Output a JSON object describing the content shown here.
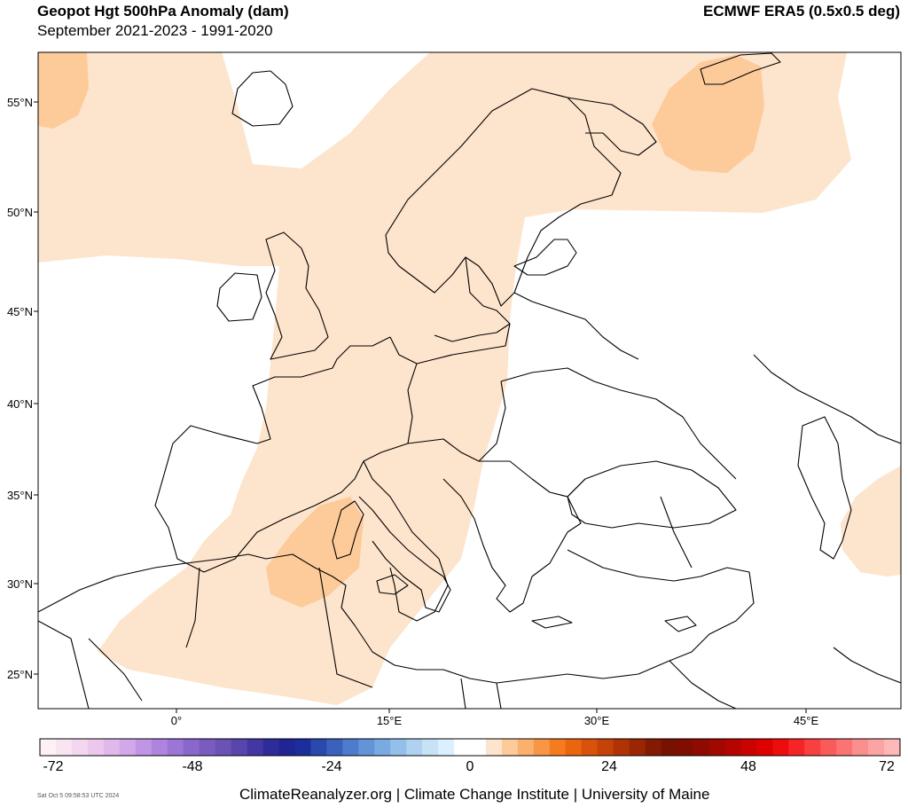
{
  "header": {
    "title": "Geopot Hgt 500hPa Anomaly (dam)",
    "subtitle": "September 2021-2023 - 1991-2020",
    "source": "ECMWF ERA5 (0.5x0.5 deg)"
  },
  "map": {
    "lat_labels": [
      "55°N",
      "50°N",
      "45°N",
      "40°N",
      "35°N",
      "30°N",
      "25°N"
    ],
    "lon_labels": [
      "0°",
      "15°E",
      "30°E",
      "45°E"
    ],
    "anomaly_colors": {
      "light_positive": "#fde4cc",
      "moderate_positive": "#fdca9a"
    }
  },
  "legend": {
    "labels": [
      "-72",
      "-48",
      "-24",
      "0",
      "24",
      "48",
      "72"
    ],
    "colors": [
      "#fdf0f7",
      "#f9e4f2",
      "#f3d6ef",
      "#ecc8ee",
      "#e0b8ec",
      "#d2a8ea",
      "#c195e6",
      "#ae84df",
      "#9c75d6",
      "#8a67cb",
      "#7a5cc0",
      "#6a52b6",
      "#5946ad",
      "#4338a3",
      "#2e2c99",
      "#1f2694",
      "#1b2e9b",
      "#2a48ad",
      "#3a62bd",
      "#4d7ccc",
      "#6394d8",
      "#7aaae2",
      "#93bfea",
      "#aed2f0",
      "#c6e2f5",
      "#dcefff",
      "#ffffff",
      "#ffffff",
      "#fde4cc",
      "#fdca9a",
      "#fbb06e",
      "#f89645",
      "#f47b1f",
      "#e9650e",
      "#d8520a",
      "#c54208",
      "#b03306",
      "#9a2604",
      "#851a02",
      "#771200",
      "#800e00",
      "#8f0a00",
      "#a00800",
      "#b50500",
      "#c80300",
      "#dd0200",
      "#ee0c0c",
      "#f62525",
      "#f84040",
      "#f95a5a",
      "#fa7474",
      "#fb8e8e",
      "#fca4a4",
      "#fdb8b8"
    ]
  },
  "footer": {
    "timestamp": "Sat Oct  5 09:58:53 UTC 2024",
    "credit": "ClimateReanalyzer.org | Climate Change Institute | University of Maine"
  }
}
